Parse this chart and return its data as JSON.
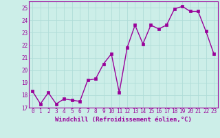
{
  "x": [
    0,
    1,
    2,
    3,
    4,
    5,
    6,
    7,
    8,
    9,
    10,
    11,
    12,
    13,
    14,
    15,
    16,
    17,
    18,
    19,
    20,
    21,
    22,
    23
  ],
  "y": [
    18.3,
    17.3,
    18.2,
    17.3,
    17.7,
    17.6,
    17.5,
    19.2,
    19.3,
    20.5,
    21.3,
    18.2,
    21.8,
    23.6,
    22.1,
    23.6,
    23.3,
    23.6,
    24.9,
    25.1,
    24.7,
    24.7,
    23.1,
    21.3
  ],
  "line_color": "#990099",
  "marker": "s",
  "markersize": 2.5,
  "linewidth": 1.0,
  "bg_color": "#cceee8",
  "grid_color": "#b0ddd8",
  "ylim": [
    17,
    25.5
  ],
  "xlim": [
    -0.5,
    23.5
  ],
  "yticks": [
    17,
    18,
    19,
    20,
    21,
    22,
    23,
    24,
    25
  ],
  "xticks": [
    0,
    1,
    2,
    3,
    4,
    5,
    6,
    7,
    8,
    9,
    10,
    11,
    12,
    13,
    14,
    15,
    16,
    17,
    18,
    19,
    20,
    21,
    22,
    23
  ],
  "xlabel": "Windchill (Refroidissement éolien,°C)",
  "xlabel_fontsize": 6.5,
  "tick_fontsize": 5.5,
  "tick_color": "#990099",
  "spine_color": "#990099"
}
